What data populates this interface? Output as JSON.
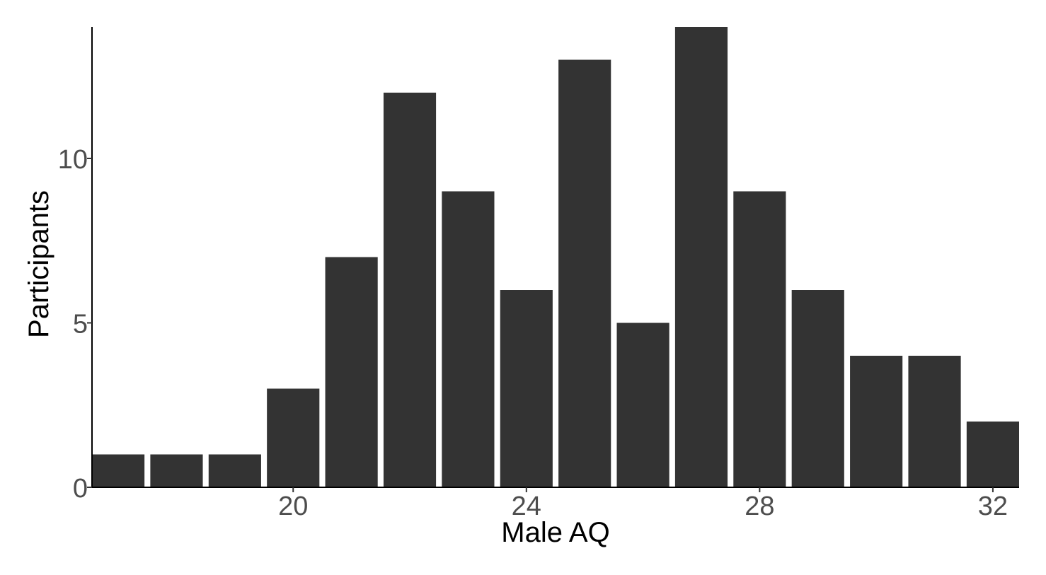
{
  "chart_data": {
    "type": "bar",
    "xlabel": "Male AQ",
    "ylabel": "Participants",
    "x": [
      17,
      18,
      19,
      20,
      21,
      22,
      23,
      24,
      25,
      26,
      27,
      28,
      29,
      30,
      31,
      32
    ],
    "values": [
      1,
      1,
      1,
      3,
      7,
      12,
      9,
      6,
      13,
      5,
      14,
      9,
      6,
      4,
      4,
      2
    ],
    "xlim": [
      16.55,
      32.45
    ],
    "ylim": [
      0,
      14
    ],
    "x_ticks": [
      20,
      24,
      28,
      32
    ],
    "x_tick_labels": [
      "20",
      "24",
      "28",
      "32"
    ],
    "y_ticks": [
      0,
      5,
      10
    ],
    "y_tick_labels": [
      "0",
      "5",
      "10"
    ],
    "bar_color": "#333333",
    "grid": false,
    "legend": "none"
  }
}
